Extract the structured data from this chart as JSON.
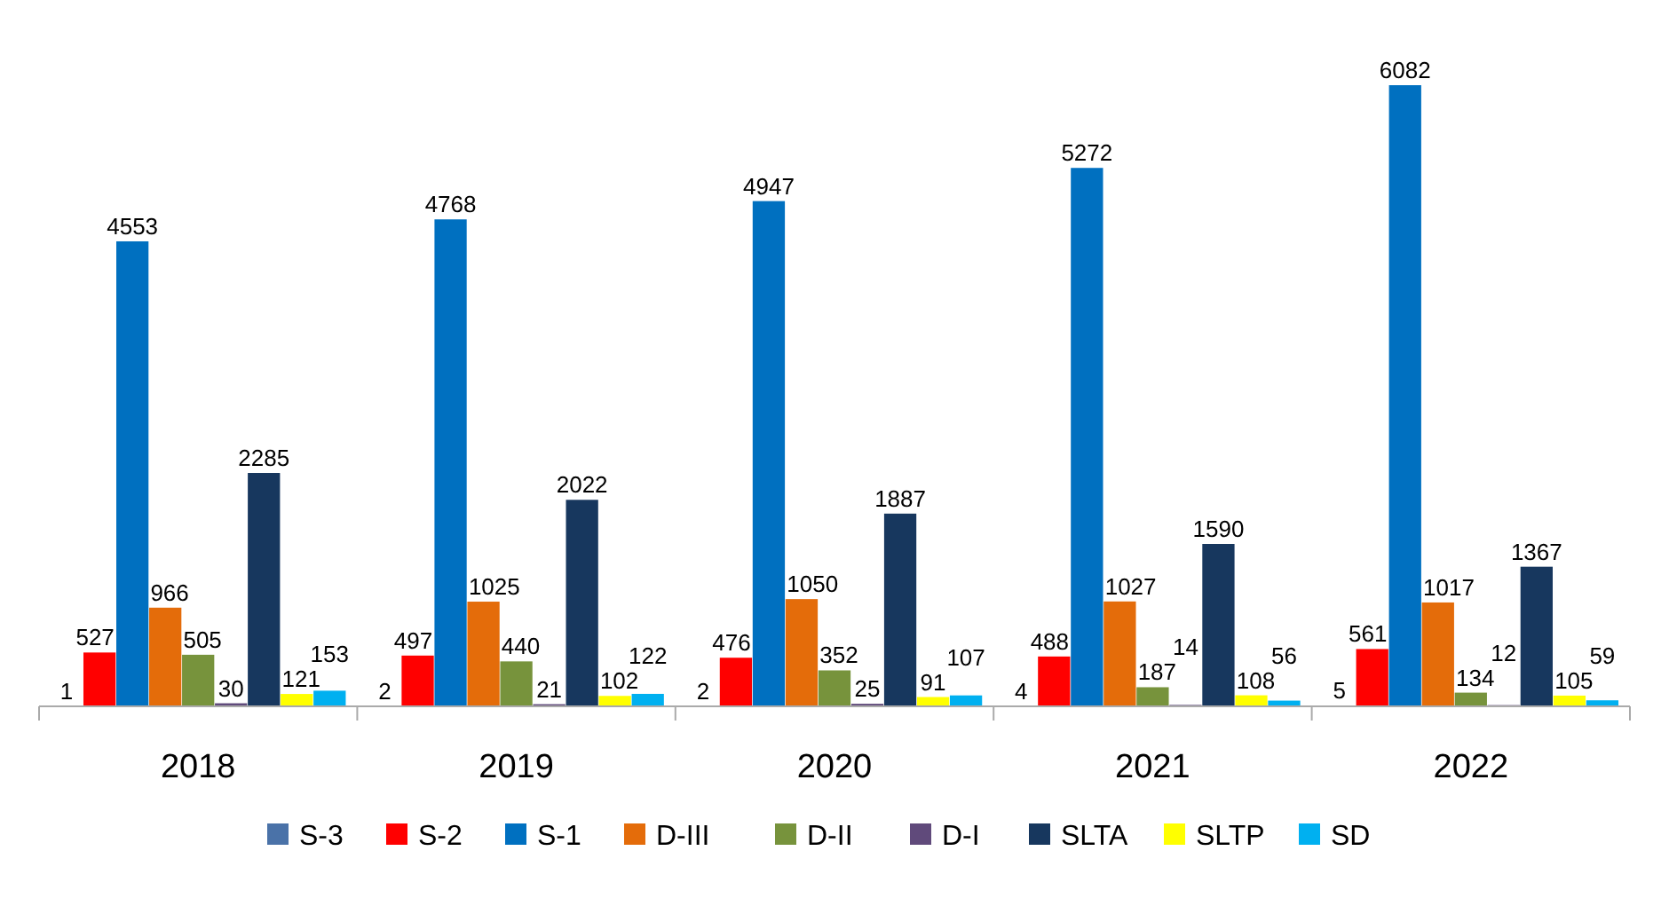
{
  "chart_data": {
    "type": "bar",
    "categories": [
      "2018",
      "2019",
      "2020",
      "2021",
      "2022"
    ],
    "series": [
      {
        "name": "S-3",
        "color": "#4a72a8",
        "values": [
          1,
          2,
          2,
          4,
          5
        ]
      },
      {
        "name": "S-2",
        "color": "#ff0000",
        "values": [
          527,
          497,
          476,
          488,
          561
        ]
      },
      {
        "name": "S-1",
        "color": "#0070c0",
        "values": [
          4553,
          4768,
          4947,
          5272,
          6082
        ]
      },
      {
        "name": "D-III",
        "color": "#e46c0a",
        "values": [
          966,
          1025,
          1050,
          1027,
          1017
        ]
      },
      {
        "name": "D-II",
        "color": "#77933c",
        "values": [
          505,
          440,
          352,
          187,
          134
        ]
      },
      {
        "name": "D-I",
        "color": "#604a7b",
        "values": [
          30,
          21,
          25,
          14,
          12
        ]
      },
      {
        "name": "SLTA",
        "color": "#17375e",
        "values": [
          2285,
          2022,
          1887,
          1590,
          1367
        ]
      },
      {
        "name": "SLTP",
        "color": "#ffff00",
        "values": [
          121,
          102,
          91,
          108,
          105
        ]
      },
      {
        "name": "SD",
        "color": "#00b0f0",
        "values": [
          153,
          122,
          107,
          56,
          59
        ]
      }
    ],
    "data_labels": true,
    "legend": "bottom"
  }
}
